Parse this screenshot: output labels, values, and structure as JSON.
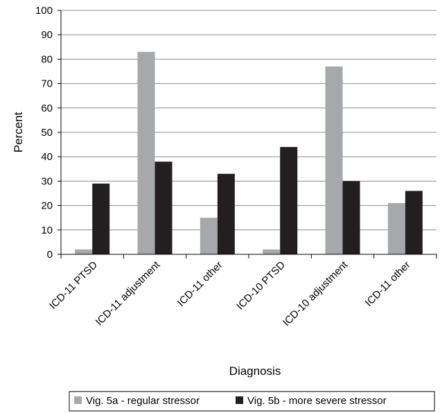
{
  "chart_data": {
    "type": "bar",
    "categories": [
      "ICD-11 PTSD",
      "ICD-11 adjustment",
      "ICD-11 other",
      "ICD-10 PTSD",
      "ICD-10 adjustment",
      "ICD-11 other"
    ],
    "series": [
      {
        "name": "Vig. 5a - regular stressor",
        "values": [
          2,
          83,
          15,
          2,
          77,
          21
        ],
        "color": "#a6a8ab"
      },
      {
        "name": "Vig. 5b - more severe stressor",
        "values": [
          29,
          38,
          33,
          44,
          30,
          26
        ],
        "color": "#231f20"
      }
    ],
    "xlabel": "Diagnosis",
    "ylabel": "Percent",
    "ylim": [
      0,
      100
    ],
    "yticks": [
      0,
      10,
      20,
      30,
      40,
      50,
      60,
      70,
      80,
      90,
      100
    ],
    "grid": true,
    "legend": "bottom"
  }
}
